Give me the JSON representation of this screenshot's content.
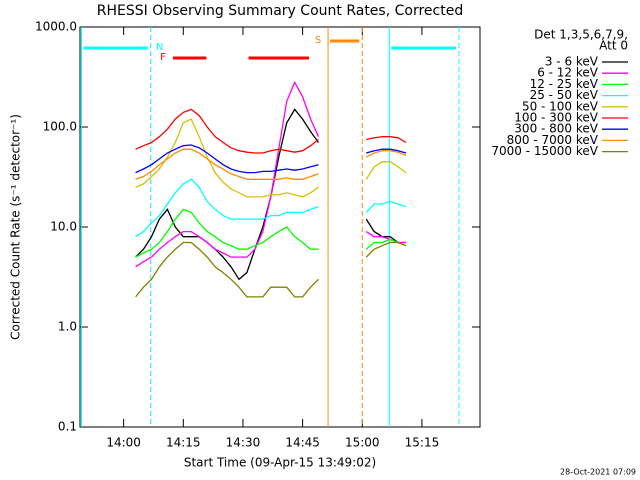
{
  "chart_data": {
    "type": "line",
    "title": "RHESSI Observing Summary Count Rates, Corrected",
    "x_label": "Start Time (09-Apr-15 13:49:02)",
    "y_label": "Corrected Count Rate (s⁻¹ detector⁻¹)",
    "footer": "28-Oct-2021 07:09",
    "legend_header": [
      "Det 1,3,5,6,7,9,",
      "Att 0"
    ],
    "log_y": true,
    "xlim": [
      49.03,
      149.6
    ],
    "xticks": [
      {
        "value": 60,
        "label": "14:00"
      },
      {
        "value": 75,
        "label": "14:15"
      },
      {
        "value": 90,
        "label": "14:30"
      },
      {
        "value": 105,
        "label": "14:45"
      },
      {
        "value": 120,
        "label": "15:00"
      },
      {
        "value": 135,
        "label": "15:15"
      }
    ],
    "ylim": [
      0.1,
      1000
    ],
    "yticks": [
      {
        "value": 1000,
        "label": "1000.0"
      },
      {
        "value": 100,
        "label": "100.0"
      },
      {
        "value": 10,
        "label": "10.0"
      },
      {
        "value": 1,
        "label": "1.0"
      },
      {
        "value": 0.1,
        "label": "0.1"
      }
    ],
    "x": [
      63,
      65,
      67,
      69,
      71,
      73,
      75,
      77,
      79,
      81,
      83,
      85,
      87,
      89,
      91,
      93,
      95,
      97,
      99,
      101,
      103,
      105,
      107,
      109,
      115,
      121,
      123,
      125,
      127,
      129,
      131
    ],
    "series": [
      {
        "name": "3 - 6 keV",
        "color": "#000000",
        "values": [
          5,
          6,
          8,
          12,
          15,
          10,
          8,
          8,
          8,
          7,
          6,
          5,
          4,
          3,
          3.5,
          6,
          10,
          20,
          50,
          110,
          150,
          120,
          90,
          70,
          null,
          12,
          9,
          8,
          8,
          7,
          7
        ]
      },
      {
        "name": "6 - 12 keV",
        "color": "#ff00ff",
        "values": [
          4,
          4.5,
          5,
          6,
          7,
          8,
          9,
          9,
          8,
          7,
          6,
          5.5,
          5,
          5,
          5,
          6,
          9,
          20,
          60,
          180,
          280,
          200,
          120,
          80,
          null,
          9,
          8,
          8,
          7.5,
          7,
          7
        ]
      },
      {
        "name": "12 - 25 keV",
        "color": "#00ff00",
        "values": [
          5,
          5.5,
          6,
          7,
          9,
          12,
          15,
          14,
          11,
          9,
          8,
          7,
          6.5,
          6,
          6,
          6.5,
          7,
          8,
          9,
          10,
          8,
          7,
          6,
          6,
          null,
          6,
          7,
          7,
          7.5,
          7,
          6.5
        ]
      },
      {
        "name": "25 - 50 keV",
        "color": "#00ffff",
        "values": [
          8,
          9,
          11,
          13,
          17,
          22,
          27,
          30,
          25,
          18,
          15,
          13,
          12,
          12,
          12,
          12,
          12,
          13,
          13,
          14,
          14,
          14,
          15,
          16,
          null,
          14,
          17,
          17,
          18,
          17,
          16
        ]
      },
      {
        "name": "50 - 100 keV",
        "color": "#d8c000",
        "values": [
          25,
          27,
          32,
          38,
          50,
          70,
          110,
          120,
          80,
          50,
          35,
          28,
          24,
          22,
          20,
          20,
          20,
          21,
          21,
          22,
          21,
          20,
          22,
          25,
          null,
          30,
          40,
          45,
          45,
          40,
          35
        ]
      },
      {
        "name": "100 - 300 keV",
        "color": "#ff0000",
        "values": [
          60,
          65,
          70,
          80,
          95,
          120,
          140,
          150,
          130,
          100,
          80,
          70,
          62,
          58,
          56,
          55,
          55,
          58,
          60,
          58,
          56,
          58,
          65,
          75,
          null,
          75,
          78,
          80,
          80,
          78,
          70
        ]
      },
      {
        "name": "300 - 800 keV",
        "color": "#0000ff",
        "values": [
          35,
          38,
          42,
          48,
          55,
          60,
          65,
          66,
          62,
          55,
          48,
          42,
          38,
          36,
          35,
          35,
          36,
          36,
          37,
          38,
          37,
          38,
          40,
          42,
          null,
          55,
          58,
          60,
          60,
          58,
          55
        ]
      },
      {
        "name": "800 - 7000 keV",
        "color": "#ff8c00",
        "values": [
          30,
          32,
          36,
          42,
          48,
          55,
          60,
          60,
          55,
          48,
          42,
          38,
          34,
          32,
          30,
          30,
          30,
          30,
          30,
          31,
          30,
          30,
          32,
          34,
          null,
          50,
          55,
          58,
          58,
          56,
          52
        ]
      },
      {
        "name": "7000 - 15000 keV",
        "color": "#808000",
        "values": [
          2,
          2.5,
          3,
          4,
          5,
          6,
          7,
          7,
          6,
          5,
          4,
          3.5,
          3,
          2.5,
          2,
          2,
          2,
          2.5,
          2.5,
          2.5,
          2,
          2,
          2.5,
          3,
          null,
          5,
          6,
          6.5,
          7,
          7,
          6.5
        ]
      }
    ],
    "intervals": [
      {
        "label": "N",
        "color": "#00ffff",
        "vertical_lines": true,
        "ranges": [
          [
            49.4,
            66.8
          ],
          [
            126.8,
            144.3
          ]
        ]
      },
      {
        "label": "S",
        "color": "#ff8c00",
        "vertical_lines": true,
        "ranges": [
          [
            111.4,
            120.0
          ]
        ]
      },
      {
        "label": "F",
        "color": "#ff0000",
        "vertical_lines": false,
        "ranges": [
          [
            72.4,
            80.8
          ],
          [
            91.4,
            106.6
          ]
        ]
      }
    ]
  }
}
